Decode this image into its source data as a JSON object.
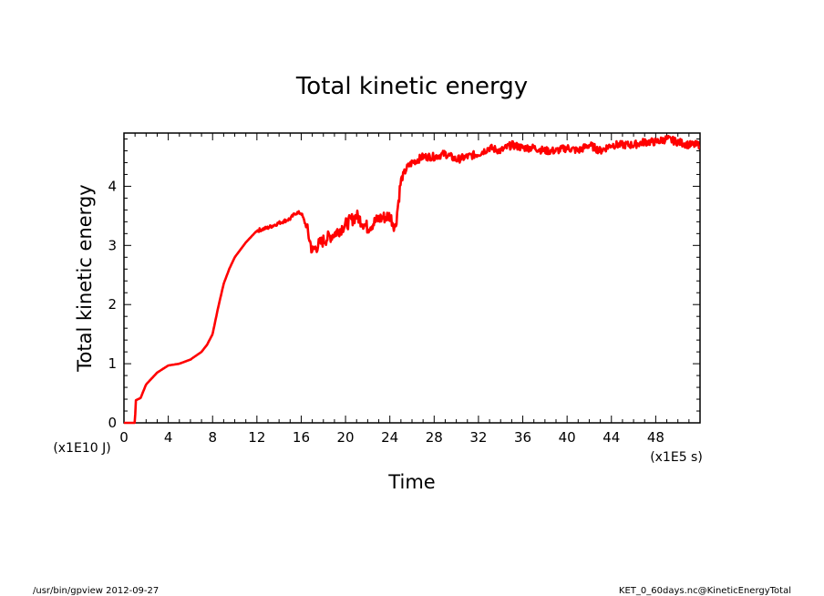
{
  "chart_data": {
    "type": "line",
    "title": "Total kinetic energy",
    "xlabel": "Time",
    "ylabel": "Total kinetic energy",
    "x_unit": "(x1E5 s)",
    "y_unit": "(x1E10 J)",
    "xlim": [
      0,
      52
    ],
    "ylim": [
      0,
      4.9
    ],
    "x_ticks": [
      0,
      4,
      8,
      12,
      16,
      20,
      24,
      28,
      32,
      36,
      40,
      44,
      48
    ],
    "y_ticks": [
      0,
      1,
      2,
      3,
      4
    ],
    "grid": false,
    "line_color": "#ff0000",
    "series": [
      {
        "x": [
          0,
          1,
          1.05,
          1.5,
          2,
          3,
          4,
          5,
          6,
          7,
          7.5,
          8,
          8.5,
          9,
          9.5,
          10,
          11,
          12,
          13,
          14,
          15,
          15.5,
          16,
          16.5,
          17,
          17.5,
          18,
          19,
          20,
          21,
          22,
          23,
          24,
          24.5,
          25,
          25.5,
          26,
          27,
          28,
          29,
          30,
          31,
          32,
          33,
          34,
          35,
          36,
          37,
          38,
          39,
          40,
          41,
          42,
          43,
          44,
          45,
          46,
          47,
          48,
          49,
          50,
          51,
          52
        ],
        "y": [
          0,
          0,
          0.38,
          0.42,
          0.65,
          0.85,
          0.97,
          1.0,
          1.07,
          1.2,
          1.32,
          1.5,
          1.95,
          2.35,
          2.6,
          2.8,
          3.05,
          3.25,
          3.3,
          3.38,
          3.45,
          3.55,
          3.55,
          3.3,
          2.9,
          3.0,
          3.08,
          3.2,
          3.35,
          3.5,
          3.3,
          3.45,
          3.5,
          3.3,
          4.1,
          4.3,
          4.4,
          4.5,
          4.5,
          4.55,
          4.45,
          4.5,
          4.55,
          4.65,
          4.6,
          4.7,
          4.65,
          4.65,
          4.6,
          4.6,
          4.65,
          4.6,
          4.7,
          4.6,
          4.7,
          4.7,
          4.7,
          4.75,
          4.75,
          4.8,
          4.75,
          4.7,
          4.7
        ]
      }
    ]
  },
  "footer": {
    "left": "/usr/bin/gpview   2012-09-27",
    "right": "KET_0_60days.nc@KineticEnergyTotal"
  }
}
